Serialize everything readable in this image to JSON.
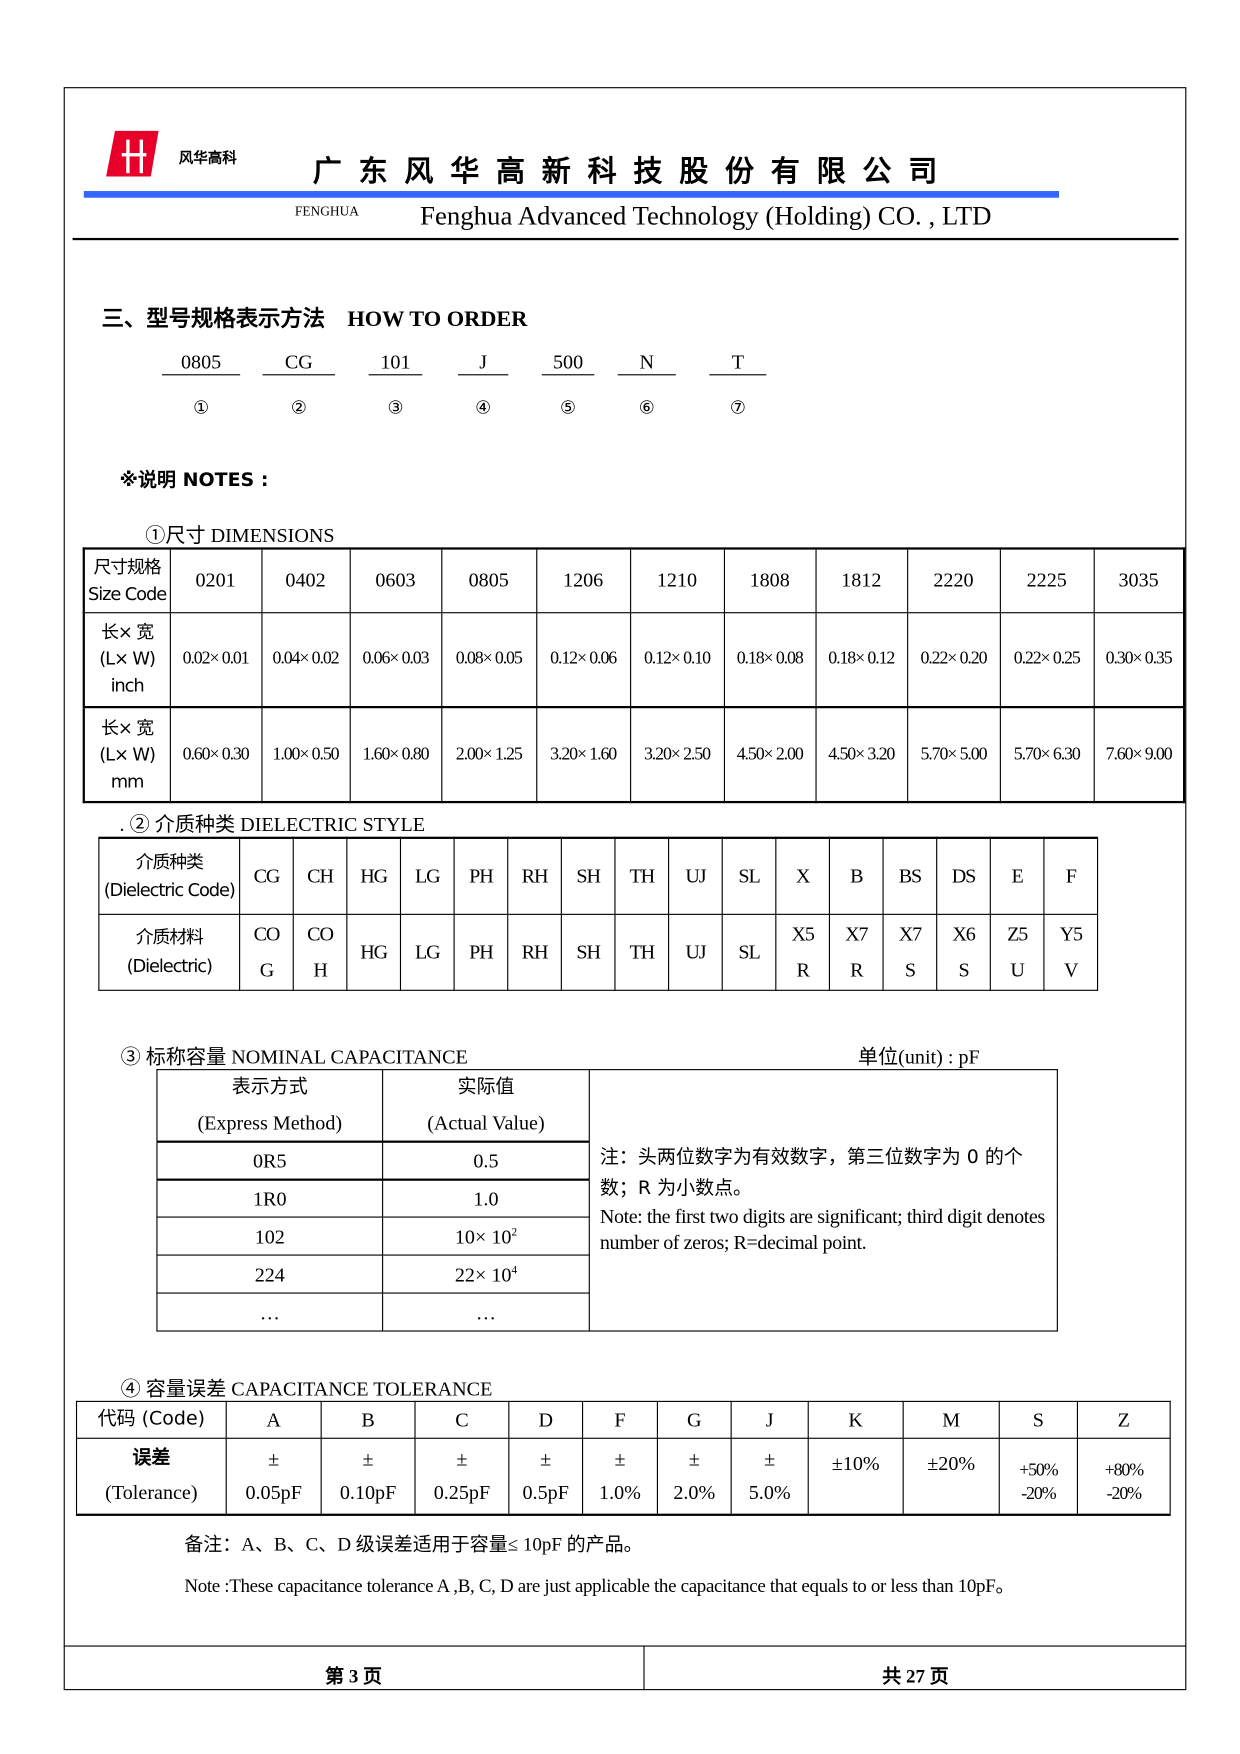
{
  "header": {
    "logo_text": "风华高科",
    "company_cn": "广东风华高新科技股份有限公司",
    "brand": "FENGHUA",
    "company_en": "Fenghua Advanced Technology (Holding) CO. , LTD",
    "accent_color": "#3366ff",
    "logo_color": "#e8002a"
  },
  "section": {
    "title_cn": "三、型号规格表示方法",
    "title_en": "HOW TO ORDER"
  },
  "order_code": [
    {
      "code": "0805",
      "num": "①"
    },
    {
      "code": "CG",
      "num": "②"
    },
    {
      "code": "101",
      "num": "③"
    },
    {
      "code": "J",
      "num": "④"
    },
    {
      "code": "500",
      "num": "⑤"
    },
    {
      "code": "N",
      "num": "⑥"
    },
    {
      "code": "T",
      "num": "⑦"
    }
  ],
  "notes_label": "※说明  NOTES :",
  "dimensions": {
    "heading": "①尺寸    DIMENSIONS",
    "row_headers": [
      [
        "尺寸规格",
        "Size Code"
      ],
      [
        "长× 宽",
        "(L× W)",
        "inch"
      ],
      [
        "长× 宽",
        "(L× W)",
        "mm"
      ]
    ],
    "size_codes": [
      "0201",
      "0402",
      "0603",
      "0805",
      "1206",
      "1210",
      "1808",
      "1812",
      "2220",
      "2225",
      "3035"
    ],
    "inch": [
      "0.02× 0.01",
      "0.04× 0.02",
      "0.06× 0.03",
      "0.08× 0.05",
      "0.12× 0.06",
      "0.12× 0.10",
      "0.18× 0.08",
      "0.18× 0.12",
      "0.22× 0.20",
      "0.22× 0.25",
      "0.30× 0.35"
    ],
    "mm": [
      "0.60× 0.30",
      "1.00× 0.50",
      "1.60× 0.80",
      "2.00× 1.25",
      "3.20× 1.60",
      "3.20× 2.50",
      "4.50× 2.00",
      "4.50× 3.20",
      "5.70× 5.00",
      "5.70× 6.30",
      "7.60× 9.00"
    ]
  },
  "dielectric": {
    "heading": ".  ②  介质种类 DIELECTRIC STYLE",
    "row_headers": [
      [
        "介质种类",
        "(Dielectric Code)"
      ],
      [
        "介质材料",
        "(Dielectric)"
      ]
    ],
    "codes": [
      "CG",
      "CH",
      "HG",
      "LG",
      "PH",
      "RH",
      "SH",
      "TH",
      "UJ",
      "SL",
      "X",
      "B",
      "BS",
      "DS",
      "E",
      "F"
    ],
    "materials": [
      [
        "CO",
        "G"
      ],
      [
        "CO",
        "H"
      ],
      [
        "HG"
      ],
      [
        "LG"
      ],
      [
        "PH"
      ],
      [
        "RH"
      ],
      [
        "SH"
      ],
      [
        "TH"
      ],
      [
        "UJ"
      ],
      [
        "SL"
      ],
      [
        "X5",
        "R"
      ],
      [
        "X7",
        "R"
      ],
      [
        "X7",
        "S"
      ],
      [
        "X6",
        "S"
      ],
      [
        "Z5",
        "U"
      ],
      [
        "Y5",
        "V"
      ]
    ]
  },
  "capacitance": {
    "heading": "③  标称容量 NOMINAL CAPACITANCE",
    "unit": "单位(unit) : pF",
    "headers": [
      [
        "表示方式",
        "(Express Method)"
      ],
      [
        "实际值",
        "(Actual Value)"
      ]
    ],
    "rows": [
      {
        "code": "0R5",
        "value": "0.5",
        "exp": ""
      },
      {
        "code": "1R0",
        "value": "1.0",
        "exp": ""
      },
      {
        "code": "102",
        "value": "10× 10",
        "exp": "2"
      },
      {
        "code": "224",
        "value": "22× 10",
        "exp": "4"
      },
      {
        "code": "…",
        "value": "…",
        "exp": ""
      }
    ],
    "note_cn": "注：头两位数字为有效数字，第三位数字为 0 的个数；R 为小数点。",
    "note_en": "Note: the first two digits are significant; third digit denotes number of zeros; R=decimal point."
  },
  "tolerance": {
    "heading": "④  容量误差 CAPACITANCE TOLERANCE",
    "row_headers": [
      "代码  (Code)",
      [
        "误差",
        "(Tolerance)"
      ]
    ],
    "codes": [
      "A",
      "B",
      "C",
      "D",
      "F",
      "G",
      "J",
      "K",
      "M",
      "S",
      "Z"
    ],
    "values": [
      [
        "±",
        "0.05pF"
      ],
      [
        "±",
        "0.10pF"
      ],
      [
        "±",
        "0.25pF"
      ],
      [
        "±",
        "0.5pF"
      ],
      [
        "±",
        "1.0%"
      ],
      [
        "±",
        "2.0%"
      ],
      [
        "±",
        "5.0%"
      ],
      [
        "±10%"
      ],
      [
        "±20%"
      ],
      [
        "+50%",
        "-20%"
      ],
      [
        "+80%",
        "-20%"
      ]
    ],
    "note_cn": "备注：A、B、C、D 级误差适用于容量≤ 10pF 的产品。",
    "note_en": "Note :These capacitance tolerance A ,B, C, D are just applicable the capacitance that equals to or less than 10pF。"
  },
  "footer": {
    "page_label": "第   3   页",
    "total_label": "共   27   页"
  }
}
